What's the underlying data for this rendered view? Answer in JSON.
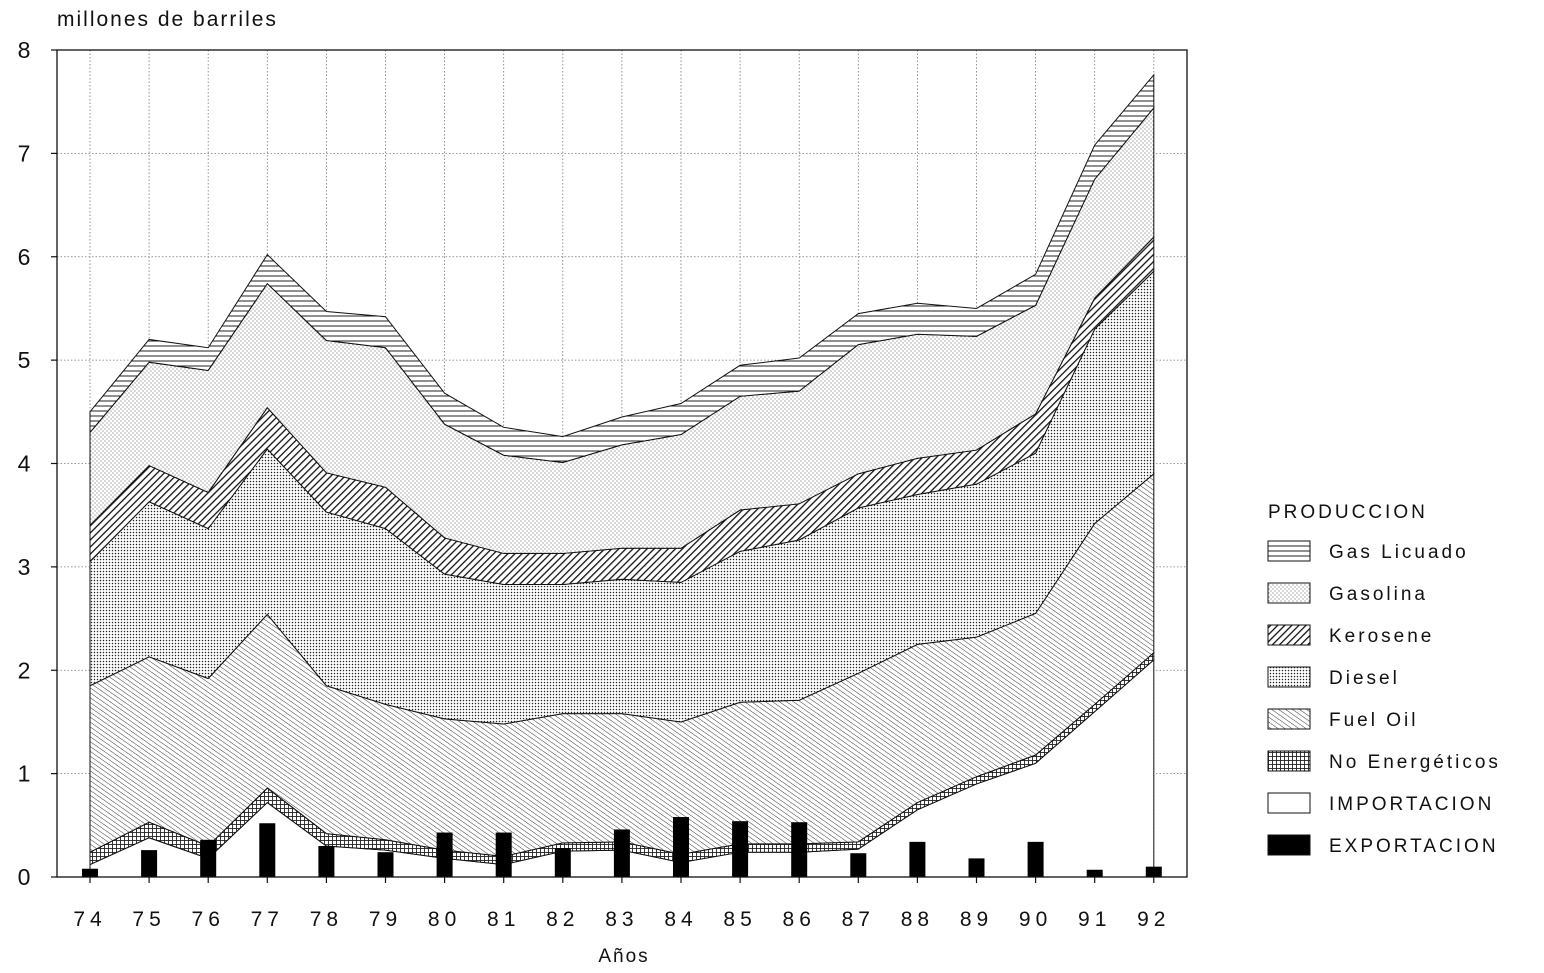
{
  "chart_data": {
    "type": "area",
    "stacked": true,
    "ylabel": "millones de barriles",
    "xlabel": "Años",
    "ylim": [
      0,
      8
    ],
    "yticks": [
      0,
      1,
      2,
      3,
      4,
      5,
      6,
      7,
      8
    ],
    "grid": true,
    "legend_position": "right",
    "legend_title": "PRODUCCION",
    "categories": [
      "74",
      "75",
      "76",
      "77",
      "78",
      "79",
      "80",
      "81",
      "82",
      "83",
      "84",
      "85",
      "86",
      "87",
      "88",
      "89",
      "90",
      "91",
      "92"
    ],
    "area_series": [
      {
        "name": "IMPORTACION",
        "pattern": "blank",
        "values": [
          0.12,
          0.38,
          0.18,
          0.72,
          0.3,
          0.26,
          0.18,
          0.12,
          0.25,
          0.26,
          0.14,
          0.24,
          0.24,
          0.27,
          0.65,
          0.9,
          1.1,
          1.6,
          2.1
        ]
      },
      {
        "name": "No Energéticos",
        "pattern": "crosshatch",
        "values": [
          0.12,
          0.15,
          0.12,
          0.14,
          0.12,
          0.1,
          0.08,
          0.08,
          0.08,
          0.08,
          0.08,
          0.08,
          0.08,
          0.07,
          0.07,
          0.07,
          0.08,
          0.07,
          0.07
        ]
      },
      {
        "name": "Fuel Oil",
        "pattern": "diag-fine",
        "values": [
          1.61,
          1.6,
          1.62,
          1.68,
          1.43,
          1.31,
          1.27,
          1.28,
          1.25,
          1.24,
          1.28,
          1.37,
          1.39,
          1.63,
          1.53,
          1.35,
          1.37,
          1.75,
          1.73
        ]
      },
      {
        "name": "Diesel",
        "pattern": "dots-dense",
        "values": [
          1.2,
          1.5,
          1.45,
          1.6,
          1.68,
          1.7,
          1.4,
          1.35,
          1.25,
          1.3,
          1.35,
          1.46,
          1.55,
          1.6,
          1.45,
          1.48,
          1.55,
          1.88,
          1.96
        ]
      },
      {
        "name": "Kerosene",
        "pattern": "diag-heavy",
        "values": [
          0.35,
          0.35,
          0.35,
          0.4,
          0.38,
          0.4,
          0.35,
          0.3,
          0.3,
          0.3,
          0.33,
          0.4,
          0.35,
          0.33,
          0.35,
          0.33,
          0.38,
          0.3,
          0.33
        ]
      },
      {
        "name": "Gasolina",
        "pattern": "dots-light",
        "values": [
          0.9,
          1.0,
          1.18,
          1.2,
          1.28,
          1.35,
          1.1,
          0.95,
          0.88,
          1.0,
          1.1,
          1.1,
          1.09,
          1.25,
          1.2,
          1.1,
          1.05,
          1.15,
          1.25
        ]
      },
      {
        "name": "Gas Licuado",
        "pattern": "horiz-lines",
        "values": [
          0.2,
          0.22,
          0.22,
          0.28,
          0.28,
          0.3,
          0.3,
          0.27,
          0.25,
          0.27,
          0.3,
          0.3,
          0.32,
          0.3,
          0.3,
          0.27,
          0.3,
          0.33,
          0.32
        ]
      }
    ],
    "bar_series": {
      "name": "EXPORTACION",
      "values": [
        0.08,
        0.26,
        0.36,
        0.52,
        0.3,
        0.24,
        0.43,
        0.43,
        0.28,
        0.46,
        0.58,
        0.54,
        0.53,
        0.23,
        0.34,
        0.18,
        0.34,
        0.07,
        0.1
      ]
    },
    "legend": [
      {
        "label": "Gas Licuado",
        "pattern": "horiz-lines"
      },
      {
        "label": "Gasolina",
        "pattern": "dots-light"
      },
      {
        "label": "Kerosene",
        "pattern": "diag-heavy"
      },
      {
        "label": "Diesel",
        "pattern": "dots-dense"
      },
      {
        "label": "Fuel Oil",
        "pattern": "diag-fine"
      },
      {
        "label": "No Energéticos",
        "pattern": "crosshatch"
      },
      {
        "label": "IMPORTACION",
        "pattern": "blank"
      },
      {
        "label": "EXPORTACION",
        "pattern": "solid"
      }
    ]
  }
}
